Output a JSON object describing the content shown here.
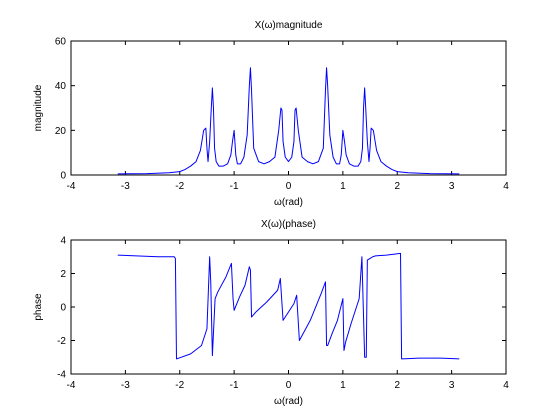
{
  "chart_data": [
    {
      "type": "line",
      "title": "X(ω)magnitude",
      "xlabel": "ω(rad)",
      "ylabel": "magnitude",
      "xlim": [
        -4,
        4
      ],
      "ylim": [
        0,
        60
      ],
      "xticks": [
        "-4",
        "-3",
        "-2",
        "-1",
        "0",
        "1",
        "2",
        "3",
        "4"
      ],
      "yticks": [
        "0",
        "20",
        "40",
        "60"
      ],
      "grid": false,
      "line_color": "#0000ff",
      "series": [
        {
          "x": [
            -3.14,
            -2.6,
            -2.2,
            -2.0,
            -1.9,
            -1.8,
            -1.7,
            -1.62,
            -1.56,
            -1.52,
            -1.5,
            -1.48,
            -1.45,
            -1.42,
            -1.4,
            -1.38,
            -1.36,
            -1.33,
            -1.28,
            -1.2,
            -1.12,
            -1.06,
            -1.03,
            -1.0,
            -0.97,
            -0.94,
            -0.88,
            -0.82,
            -0.76,
            -0.72,
            -0.7,
            -0.68,
            -0.64,
            -0.55,
            -0.45,
            -0.35,
            -0.25,
            -0.18,
            -0.14,
            -0.12,
            -0.1,
            -0.06,
            0.0,
            0.06,
            0.1,
            0.12,
            0.14,
            0.18,
            0.25,
            0.35,
            0.45,
            0.55,
            0.64,
            0.68,
            0.7,
            0.72,
            0.76,
            0.82,
            0.88,
            0.94,
            0.97,
            1.0,
            1.03,
            1.06,
            1.12,
            1.2,
            1.28,
            1.33,
            1.36,
            1.38,
            1.4,
            1.42,
            1.45,
            1.48,
            1.5,
            1.52,
            1.56,
            1.62,
            1.7,
            1.8,
            1.9,
            2.0,
            2.2,
            2.6,
            3.14
          ],
          "y": [
            0.5,
            0.6,
            1.0,
            1.5,
            2.5,
            4,
            6,
            11,
            20,
            21,
            12,
            6,
            15,
            30,
            39,
            30,
            12,
            6,
            4,
            4,
            5,
            9,
            15,
            20,
            9,
            5,
            5,
            8,
            18,
            40,
            48,
            38,
            12,
            6,
            5,
            6,
            8,
            20,
            30,
            29,
            15,
            8,
            6,
            8,
            15,
            29,
            30,
            20,
            8,
            6,
            5,
            6,
            12,
            38,
            48,
            40,
            18,
            8,
            5,
            5,
            9,
            20,
            15,
            9,
            5,
            4,
            4,
            6,
            12,
            30,
            39,
            30,
            15,
            6,
            12,
            21,
            20,
            11,
            6,
            4,
            2.5,
            1.5,
            1.0,
            0.6,
            0.5
          ]
        }
      ]
    },
    {
      "type": "line",
      "title": "X(ω)(phase)",
      "xlabel": "ω(rad)",
      "ylabel": "phase",
      "xlim": [
        -4,
        4
      ],
      "ylim": [
        -4,
        4
      ],
      "xticks": [
        "-4",
        "-3",
        "-2",
        "-1",
        "0",
        "1",
        "2",
        "3",
        "4"
      ],
      "yticks": [
        "-4",
        "-2",
        "0",
        "2",
        "4"
      ],
      "grid": false,
      "line_color": "#0000ff",
      "series": [
        {
          "x": [
            -3.14,
            -2.8,
            -2.4,
            -2.1,
            -2.08,
            -2.06,
            -1.8,
            -1.6,
            -1.55,
            -1.5,
            -1.45,
            -1.43,
            -1.4,
            -1.35,
            -1.3,
            -1.15,
            -1.05,
            -1.02,
            -1.0,
            -0.9,
            -0.8,
            -0.72,
            -0.7,
            -0.68,
            -0.6,
            -0.4,
            -0.2,
            -0.15,
            -0.1,
            0.0,
            0.1,
            0.15,
            0.2,
            0.4,
            0.6,
            0.68,
            0.7,
            0.72,
            0.8,
            0.9,
            1.0,
            1.02,
            1.05,
            1.15,
            1.3,
            1.35,
            1.4,
            1.43,
            1.45,
            1.5,
            1.55,
            1.6,
            1.8,
            2.06,
            2.08,
            2.1,
            2.4,
            2.8,
            3.14
          ],
          "y": [
            3.1,
            3.05,
            3.0,
            3.0,
            2.9,
            -3.1,
            -2.8,
            -2.3,
            -1.8,
            -1.3,
            3.0,
            1.5,
            -2.9,
            0.5,
            0.9,
            1.8,
            2.6,
            0.5,
            -0.2,
            0.6,
            1.3,
            2.4,
            2.2,
            -0.6,
            -0.3,
            0.3,
            1.0,
            1.7,
            -0.8,
            -0.3,
            0.2,
            0.7,
            -2.0,
            -0.8,
            0.8,
            1.5,
            -2.3,
            -2.3,
            -1.6,
            -0.8,
            0.5,
            -2.6,
            -2.1,
            -1.0,
            0.5,
            3.0,
            -3.0,
            -3.0,
            2.8,
            2.9,
            3.0,
            3.05,
            3.1,
            3.2,
            -3.1,
            -3.1,
            -3.05,
            -3.05,
            -3.1
          ]
        }
      ]
    }
  ]
}
